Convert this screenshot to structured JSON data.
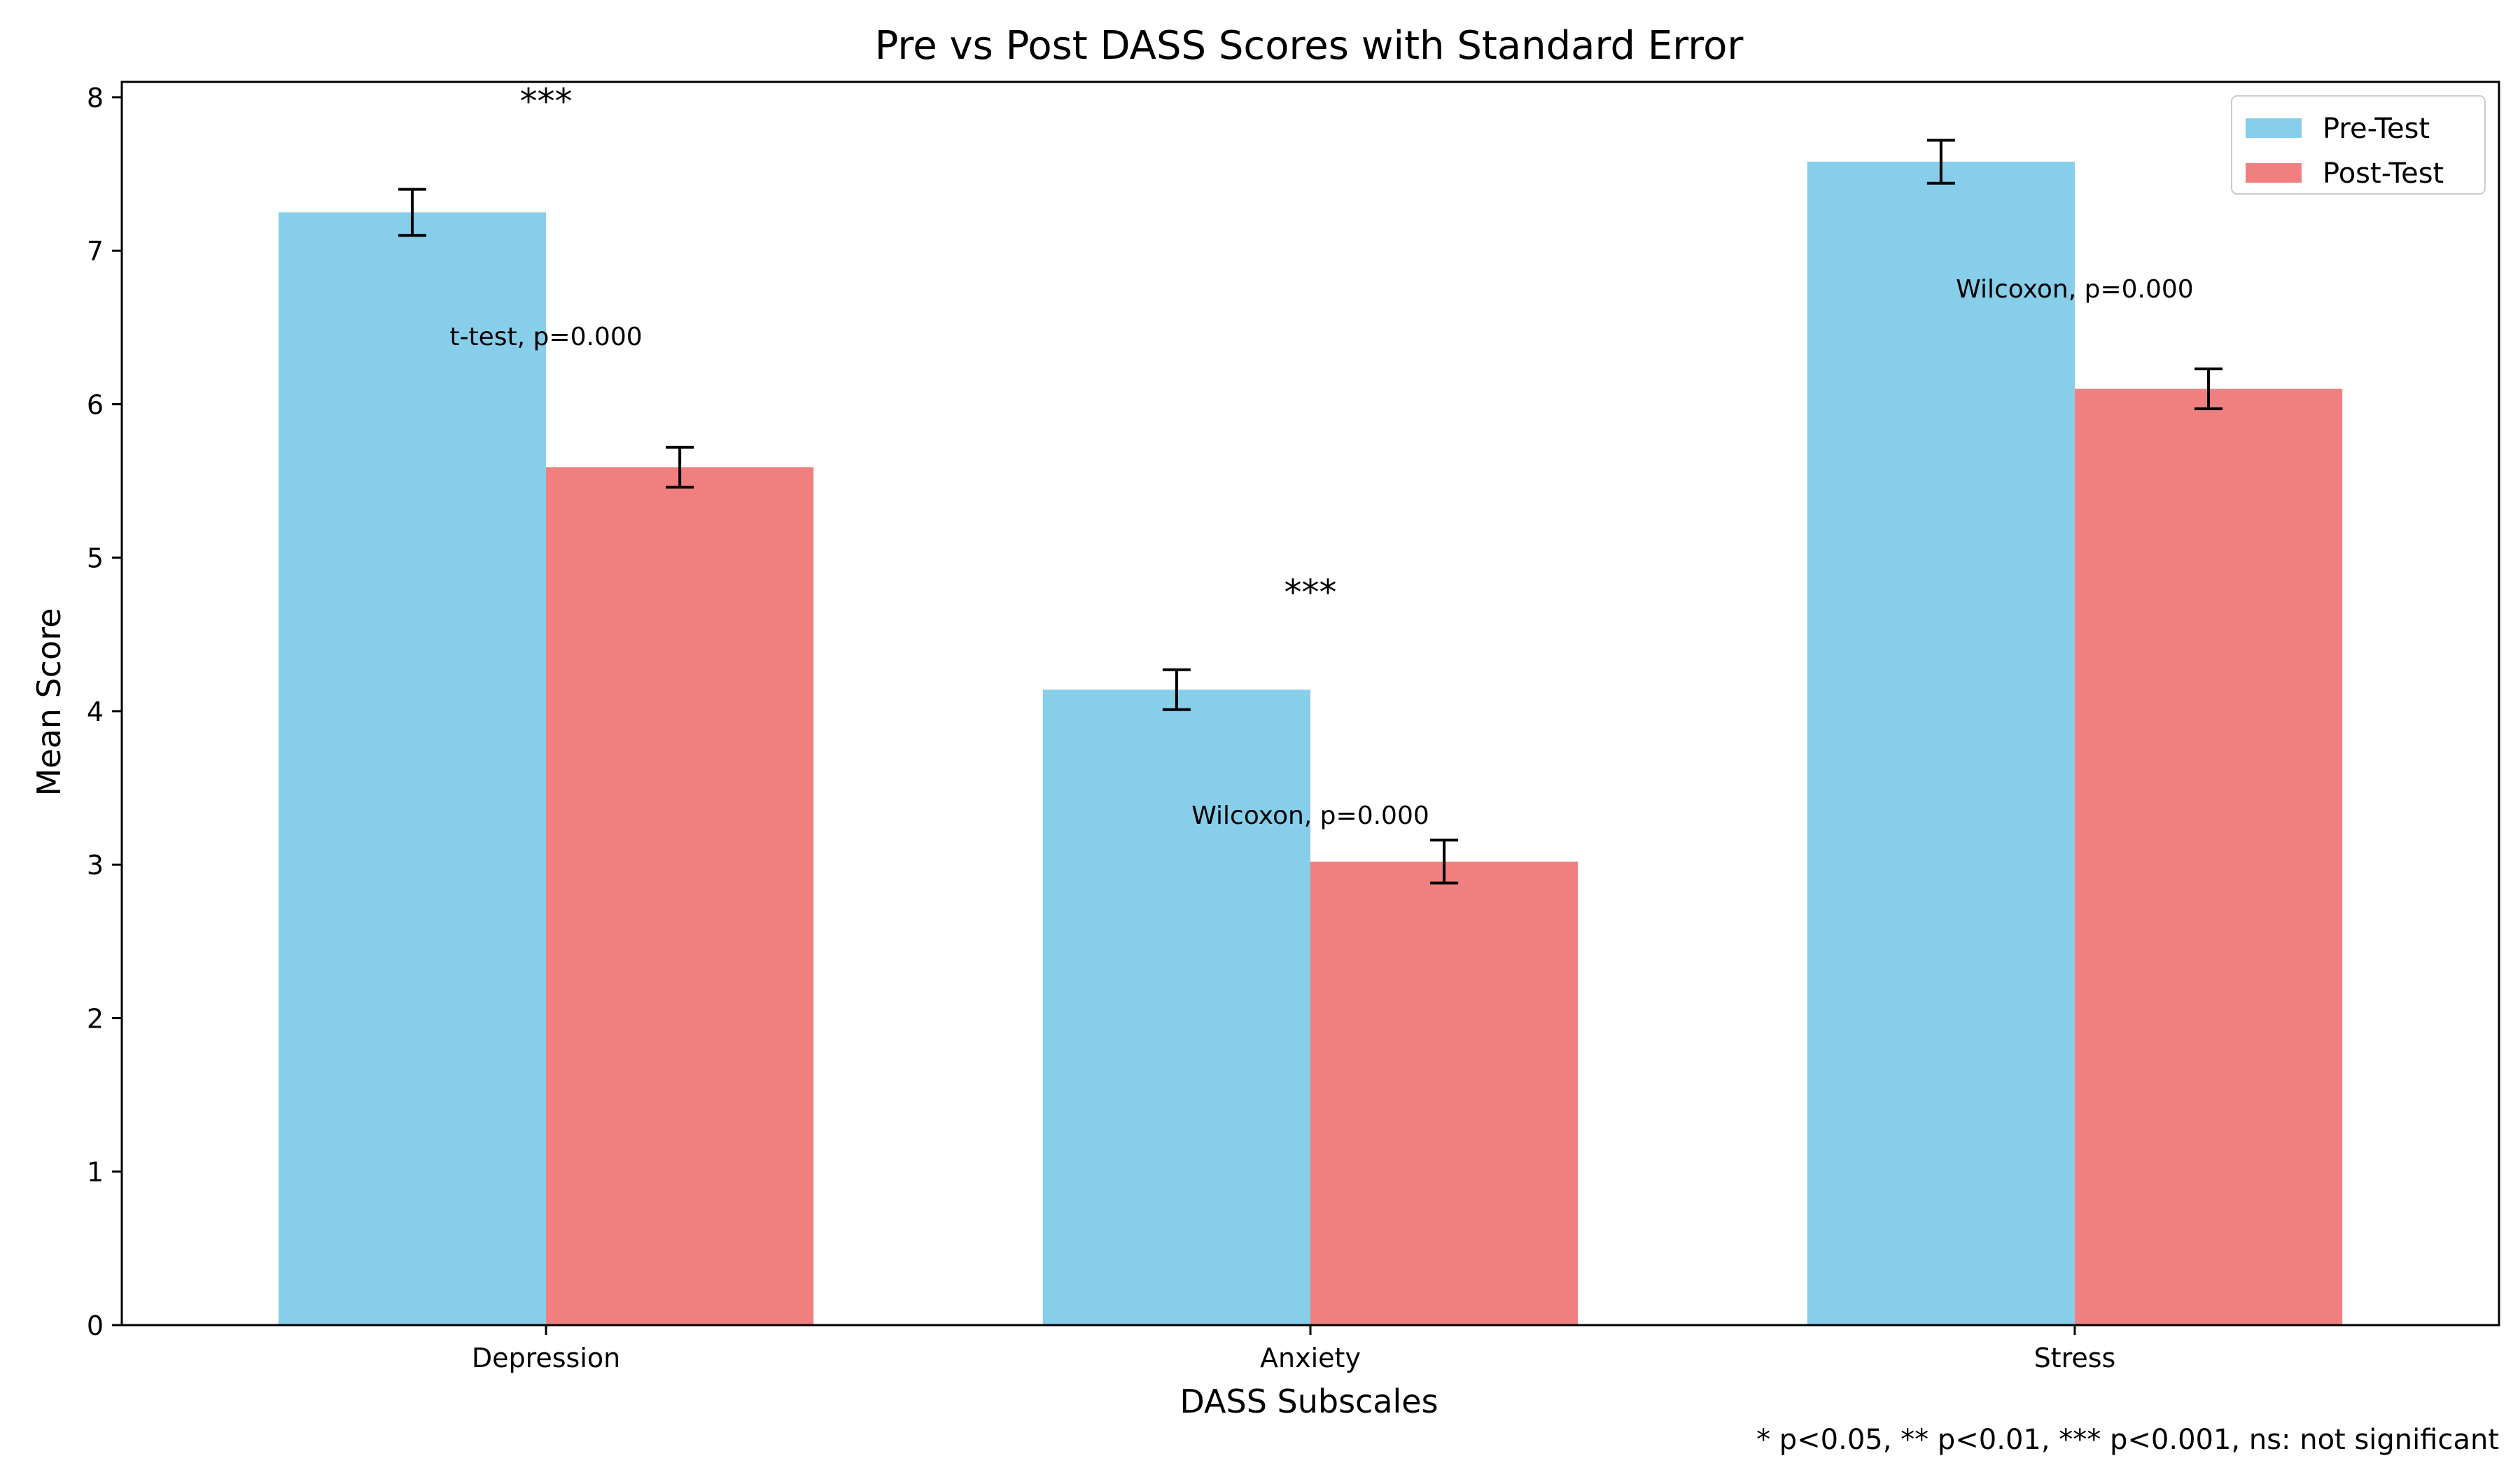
{
  "chart_data": {
    "type": "bar",
    "title": "Pre vs Post DASS Scores with Standard Error",
    "xlabel": "DASS Subscales",
    "ylabel": "Mean Score",
    "categories": [
      "Depression",
      "Anxiety",
      "Stress"
    ],
    "ylim": [
      0,
      8.1
    ],
    "yticks": [
      "0",
      "1",
      "2",
      "3",
      "4",
      "5",
      "6",
      "7",
      "8"
    ],
    "grid": false,
    "legend_position": "top-right",
    "series": [
      {
        "name": "Pre-Test",
        "color": "#87CEEB",
        "values": [
          7.25,
          4.14,
          7.58
        ],
        "errors": [
          0.15,
          0.13,
          0.14
        ]
      },
      {
        "name": "Post-Test",
        "color": "#F08080",
        "values": [
          5.59,
          3.02,
          6.1
        ],
        "errors": [
          0.13,
          0.14,
          0.13
        ]
      }
    ],
    "annotations": {
      "significance": [
        {
          "category": "Depression",
          "label": "***",
          "y": 8.05
        },
        {
          "category": "Anxiety",
          "label": "***",
          "y": 4.85
        }
      ],
      "tests": [
        {
          "category": "Depression",
          "label": "t-test, p=0.000",
          "y": 6.45
        },
        {
          "category": "Anxiety",
          "label": "Wilcoxon, p=0.000",
          "y": 3.33
        },
        {
          "category": "Stress",
          "label": "Wilcoxon, p=0.000",
          "y": 6.76
        }
      ]
    },
    "footnote": "* p<0.05, ** p<0.01, *** p<0.001, ns: not significant"
  }
}
